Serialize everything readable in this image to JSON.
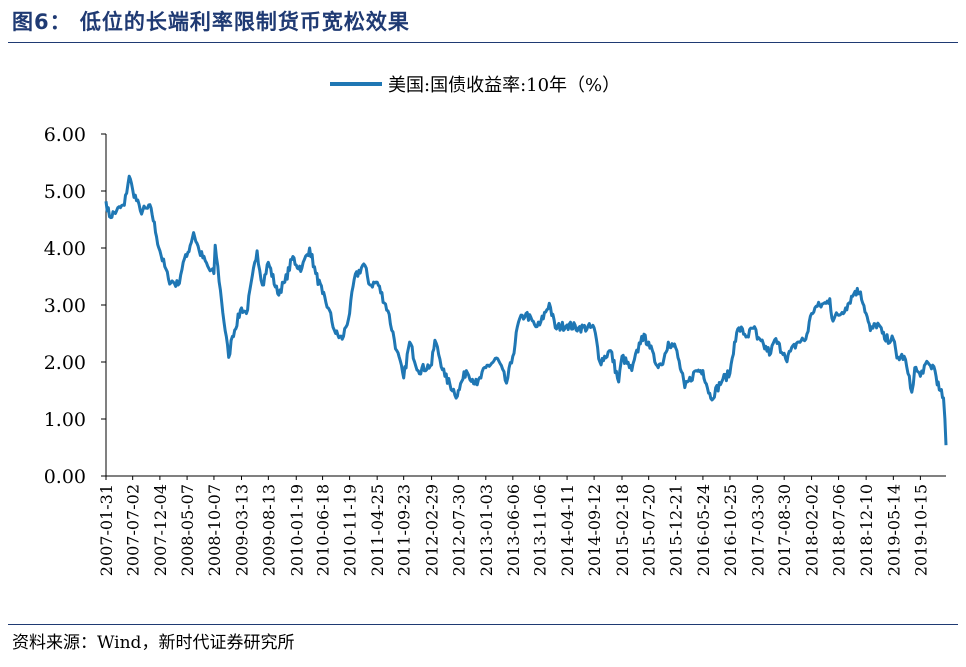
{
  "figure": {
    "title": "图6： 低位的长端利率限制货币宽松效果",
    "source": "资料来源：Wind，新时代证券研究所"
  },
  "chart_data": {
    "type": "line",
    "title": "",
    "legend": {
      "position": "top-center"
    },
    "series": [
      {
        "name": "美国:国债收益率:10年（%）",
        "color": "#1f77b4",
        "points": [
          [
            "2007-01-31",
            4.82
          ],
          [
            "2007-02-20",
            4.55
          ],
          [
            "2007-04-01",
            4.65
          ],
          [
            "2007-05-15",
            4.75
          ],
          [
            "2007-06-12",
            5.26
          ],
          [
            "2007-07-02",
            5.02
          ],
          [
            "2007-08-15",
            4.65
          ],
          [
            "2007-10-15",
            4.7
          ],
          [
            "2007-11-15",
            4.2
          ],
          [
            "2007-12-04",
            3.95
          ],
          [
            "2008-01-22",
            3.45
          ],
          [
            "2008-03-17",
            3.35
          ],
          [
            "2008-04-15",
            3.75
          ],
          [
            "2008-05-05",
            3.85
          ],
          [
            "2008-06-13",
            4.27
          ],
          [
            "2008-07-15",
            3.95
          ],
          [
            "2008-09-15",
            3.6
          ],
          [
            "2008-10-07",
            3.55
          ],
          [
            "2008-10-14",
            4.05
          ],
          [
            "2008-11-20",
            3.05
          ],
          [
            "2008-12-30",
            2.08
          ],
          [
            "2009-01-20",
            2.45
          ],
          [
            "2009-03-13",
            2.95
          ],
          [
            "2009-04-10",
            2.85
          ],
          [
            "2009-06-10",
            3.95
          ],
          [
            "2009-07-10",
            3.35
          ],
          [
            "2009-08-13",
            3.75
          ],
          [
            "2009-10-05",
            3.2
          ],
          [
            "2009-11-15",
            3.4
          ],
          [
            "2009-12-31",
            3.85
          ],
          [
            "2010-01-19",
            3.7
          ],
          [
            "2010-02-20",
            3.65
          ],
          [
            "2010-04-05",
            4.0
          ],
          [
            "2010-05-10",
            3.55
          ],
          [
            "2010-06-18",
            3.2
          ],
          [
            "2010-07-20",
            2.95
          ],
          [
            "2010-08-31",
            2.5
          ],
          [
            "2010-10-08",
            2.4
          ],
          [
            "2010-11-19",
            2.85
          ],
          [
            "2010-12-15",
            3.45
          ],
          [
            "2011-02-08",
            3.72
          ],
          [
            "2011-03-15",
            3.35
          ],
          [
            "2011-04-25",
            3.4
          ],
          [
            "2011-06-25",
            2.9
          ],
          [
            "2011-08-15",
            2.2
          ],
          [
            "2011-09-23",
            1.72
          ],
          [
            "2011-10-27",
            2.35
          ],
          [
            "2011-12-15",
            1.85
          ],
          [
            "2012-02-29",
            1.95
          ],
          [
            "2012-03-19",
            2.38
          ],
          [
            "2012-05-15",
            1.75
          ],
          [
            "2012-07-25",
            1.4
          ],
          [
            "2012-07-30",
            1.5
          ],
          [
            "2012-09-14",
            1.85
          ],
          [
            "2012-11-15",
            1.6
          ],
          [
            "2013-01-03",
            1.9
          ],
          [
            "2013-03-11",
            2.06
          ],
          [
            "2013-05-01",
            1.63
          ],
          [
            "2013-06-06",
            2.1
          ],
          [
            "2013-07-08",
            2.7
          ],
          [
            "2013-08-20",
            2.85
          ],
          [
            "2013-10-15",
            2.62
          ],
          [
            "2013-11-06",
            2.65
          ],
          [
            "2013-12-31",
            3.03
          ],
          [
            "2014-02-03",
            2.6
          ],
          [
            "2014-04-11",
            2.65
          ],
          [
            "2014-06-15",
            2.6
          ],
          [
            "2014-09-12",
            2.6
          ],
          [
            "2014-10-15",
            2.0
          ],
          [
            "2014-12-15",
            2.2
          ],
          [
            "2015-01-30",
            1.65
          ],
          [
            "2015-02-18",
            2.1
          ],
          [
            "2015-04-15",
            1.85
          ],
          [
            "2015-06-10",
            2.45
          ],
          [
            "2015-07-20",
            2.35
          ],
          [
            "2015-08-24",
            2.0
          ],
          [
            "2015-10-02",
            1.95
          ],
          [
            "2015-11-09",
            2.35
          ],
          [
            "2015-12-21",
            2.25
          ],
          [
            "2016-02-11",
            1.55
          ],
          [
            "2016-04-15",
            1.85
          ],
          [
            "2016-05-24",
            1.85
          ],
          [
            "2016-07-08",
            1.36
          ],
          [
            "2016-09-15",
            1.7
          ],
          [
            "2016-10-25",
            1.8
          ],
          [
            "2016-11-20",
            2.35
          ],
          [
            "2016-12-15",
            2.6
          ],
          [
            "2017-01-31",
            2.45
          ],
          [
            "2017-03-14",
            2.62
          ],
          [
            "2017-03-30",
            2.4
          ],
          [
            "2017-06-14",
            2.15
          ],
          [
            "2017-07-07",
            2.39
          ],
          [
            "2017-08-30",
            2.15
          ],
          [
            "2017-09-08",
            2.05
          ],
          [
            "2017-11-15",
            2.35
          ],
          [
            "2017-12-31",
            2.4
          ],
          [
            "2018-02-02",
            2.85
          ],
          [
            "2018-02-21",
            2.95
          ],
          [
            "2018-04-25",
            3.03
          ],
          [
            "2018-05-17",
            3.11
          ],
          [
            "2018-05-29",
            2.77
          ],
          [
            "2018-07-06",
            2.82
          ],
          [
            "2018-08-15",
            2.95
          ],
          [
            "2018-10-08",
            3.24
          ],
          [
            "2018-11-08",
            3.23
          ],
          [
            "2018-12-10",
            2.85
          ],
          [
            "2019-01-03",
            2.55
          ],
          [
            "2019-02-15",
            2.68
          ],
          [
            "2019-03-25",
            2.4
          ],
          [
            "2019-05-14",
            2.4
          ],
          [
            "2019-06-03",
            2.07
          ],
          [
            "2019-07-15",
            2.1
          ],
          [
            "2019-08-27",
            1.47
          ],
          [
            "2019-09-13",
            1.9
          ],
          [
            "2019-10-15",
            1.75
          ],
          [
            "2019-11-07",
            1.94
          ],
          [
            "2019-12-31",
            1.92
          ],
          [
            "2020-01-31",
            1.51
          ],
          [
            "2020-02-24",
            1.37
          ],
          [
            "2020-03-03",
            1.0
          ],
          [
            "2020-03-09",
            0.54
          ]
        ]
      }
    ],
    "xlabel": "",
    "ylabel": "",
    "ylim": [
      0,
      6
    ],
    "yticks": [
      "0.00",
      "1.00",
      "2.00",
      "3.00",
      "4.00",
      "5.00",
      "6.00"
    ],
    "xlim": [
      "2007-01-31",
      "2020-03-09"
    ],
    "xticks": [
      "2007-01-31",
      "2007-07-02",
      "2007-12-04",
      "2008-05-07",
      "2008-10-07",
      "2009-03-13",
      "2009-08-13",
      "2010-01-19",
      "2010-06-18",
      "2010-11-19",
      "2011-04-25",
      "2011-09-23",
      "2012-02-29",
      "2012-07-30",
      "2013-01-03",
      "2013-06-06",
      "2013-11-06",
      "2014-04-11",
      "2014-09-12",
      "2015-02-18",
      "2015-07-20",
      "2015-12-21",
      "2016-05-24",
      "2016-10-25",
      "2017-03-30",
      "2017-08-30",
      "2018-02-02",
      "2018-07-06",
      "2018-12-10",
      "2019-05-14",
      "2019-10-15"
    ],
    "grid": false
  }
}
